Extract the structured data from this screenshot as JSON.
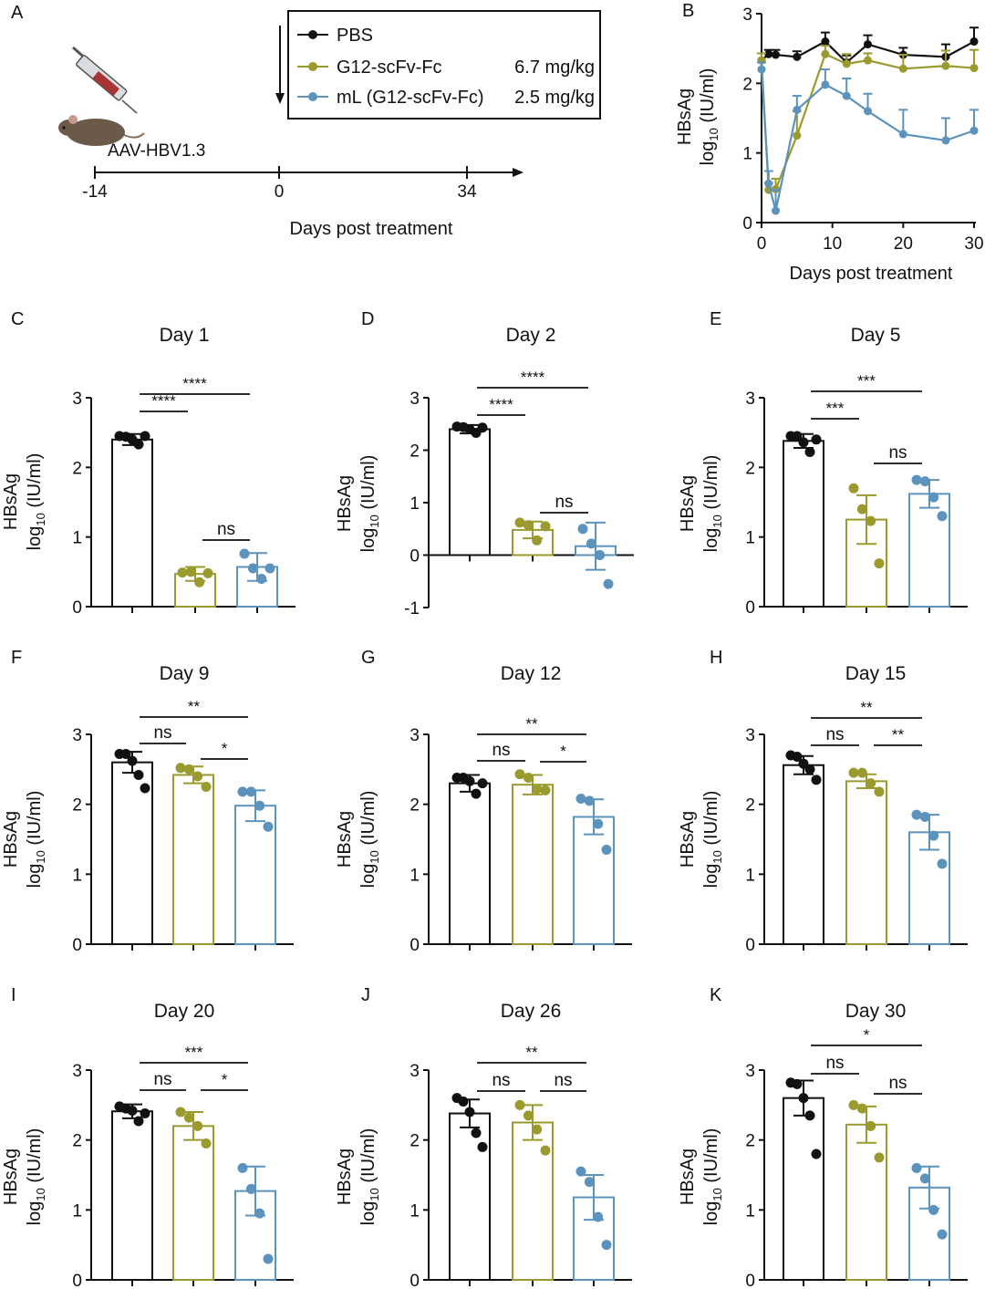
{
  "colors": {
    "pbs": "#111111",
    "g12": "#9a9a2e",
    "ml": "#5b93bd"
  },
  "panel_a": {
    "letter": "A",
    "mouse_label": "AAV-HBV1.3",
    "axis_label": "Days post treatment",
    "ticks": [
      "-14",
      "0",
      "34"
    ],
    "legend": [
      {
        "label": "PBS",
        "dose": ""
      },
      {
        "label": "G12-scFv-Fc",
        "dose": "6.7 mg/kg"
      },
      {
        "label": "mL (G12-scFv-Fc)",
        "dose": "2.5 mg/kg"
      }
    ]
  },
  "chart_data": [
    {
      "panel": "B",
      "type": "line",
      "xlabel": "Days post treatment",
      "ylabel_main": "HBsAg",
      "ylabel_log": "log",
      "ylabel_sub": "10",
      "ylabel_unit": " (IU/ml)",
      "xlim": [
        0,
        30
      ],
      "ylim": [
        0,
        3
      ],
      "xticks": [
        "0",
        "10",
        "20",
        "30"
      ],
      "yticks": [
        "0",
        "1",
        "2",
        "3"
      ],
      "x": [
        0,
        1,
        2,
        5,
        9,
        12,
        15,
        20,
        26,
        30
      ],
      "series": [
        {
          "name": "PBS",
          "values": [
            2.33,
            2.42,
            2.41,
            2.38,
            2.6,
            2.3,
            2.56,
            2.41,
            2.38,
            2.6
          ],
          "errors": [
            0.1,
            0.06,
            0.07,
            0.08,
            0.13,
            0.1,
            0.13,
            0.1,
            0.18,
            0.2
          ]
        },
        {
          "name": "G12-scFv-Fc",
          "values": [
            2.33,
            0.47,
            0.48,
            1.25,
            2.42,
            2.28,
            2.33,
            2.21,
            2.25,
            2.22
          ],
          "errors": [
            0.1,
            0.1,
            0.15,
            0.35,
            0.12,
            0.14,
            0.1,
            0.2,
            0.22,
            0.26
          ]
        },
        {
          "name": "mL (G12-scFv-Fc)",
          "values": [
            2.2,
            0.56,
            0.17,
            1.62,
            1.98,
            1.82,
            1.6,
            1.27,
            1.18,
            1.32
          ],
          "errors": [
            0.1,
            0.18,
            0.3,
            0.2,
            0.22,
            0.25,
            0.25,
            0.35,
            0.32,
            0.3
          ]
        }
      ]
    },
    {
      "panel": "C",
      "type": "bar",
      "title": "Day 1",
      "ylabel_main": "HBsAg",
      "ylabel_log": "log",
      "ylabel_sub": "10",
      "ylabel_unit": " (IU/ml)",
      "ylim": [
        0,
        3
      ],
      "yticks": [
        "0",
        "1",
        "2",
        "3"
      ],
      "series": [
        {
          "name": "PBS",
          "mean": 2.4,
          "sd": 0.08,
          "points": [
            2.45,
            2.44,
            2.4,
            2.33,
            2.45
          ]
        },
        {
          "name": "G12-scFv-Fc",
          "mean": 0.47,
          "sd": 0.1,
          "points": [
            0.49,
            0.5,
            0.35,
            0.48
          ]
        },
        {
          "name": "mL (G12-scFv-Fc)",
          "mean": 0.57,
          "sd": 0.2,
          "points": [
            0.76,
            0.55,
            0.4,
            0.55
          ]
        }
      ],
      "comparisons": [
        {
          "from": 0,
          "to": 1,
          "label": "****"
        },
        {
          "from": 0,
          "to": 2,
          "label": "****"
        },
        {
          "from": 1,
          "to": 2,
          "label": "ns"
        }
      ]
    },
    {
      "panel": "D",
      "type": "bar",
      "title": "Day 2",
      "ylabel_main": "HBsAg",
      "ylabel_log": "log",
      "ylabel_sub": "10",
      "ylabel_unit": " (IU/ml)",
      "ylim": [
        -1,
        3
      ],
      "yticks": [
        "-1",
        "0",
        "1",
        "2",
        "3"
      ],
      "series": [
        {
          "name": "PBS",
          "mean": 2.4,
          "sd": 0.08,
          "points": [
            2.45,
            2.44,
            2.4,
            2.33,
            2.43
          ]
        },
        {
          "name": "G12-scFv-Fc",
          "mean": 0.48,
          "sd": 0.16,
          "points": [
            0.62,
            0.57,
            0.28,
            0.55
          ]
        },
        {
          "name": "mL (G12-scFv-Fc)",
          "mean": 0.17,
          "sd": 0.45,
          "points": [
            0.5,
            0.22,
            0.0,
            -0.55
          ]
        }
      ],
      "comparisons": [
        {
          "from": 0,
          "to": 1,
          "label": "****"
        },
        {
          "from": 0,
          "to": 2,
          "label": "****"
        },
        {
          "from": 1,
          "to": 2,
          "label": "ns"
        }
      ]
    },
    {
      "panel": "E",
      "type": "bar",
      "title": "Day 5",
      "ylabel_main": "HBsAg",
      "ylabel_log": "log",
      "ylabel_sub": "10",
      "ylabel_unit": " (IU/ml)",
      "ylim": [
        0,
        3
      ],
      "yticks": [
        "0",
        "1",
        "2",
        "3"
      ],
      "series": [
        {
          "name": "PBS",
          "mean": 2.38,
          "sd": 0.1,
          "points": [
            2.45,
            2.45,
            2.36,
            2.22,
            2.4
          ]
        },
        {
          "name": "G12-scFv-Fc",
          "mean": 1.25,
          "sd": 0.35,
          "points": [
            1.7,
            1.4,
            1.23,
            0.62
          ]
        },
        {
          "name": "mL (G12-scFv-Fc)",
          "mean": 1.62,
          "sd": 0.2,
          "points": [
            1.82,
            1.8,
            1.57,
            1.3
          ]
        }
      ],
      "comparisons": [
        {
          "from": 0,
          "to": 1,
          "label": "***"
        },
        {
          "from": 0,
          "to": 2,
          "label": "***"
        },
        {
          "from": 1,
          "to": 2,
          "label": "ns"
        }
      ]
    },
    {
      "panel": "F",
      "type": "bar",
      "title": "Day 9",
      "ylabel_main": "HBsAg",
      "ylabel_log": "log",
      "ylabel_sub": "10",
      "ylabel_unit": " (IU/ml)",
      "ylim": [
        0,
        3
      ],
      "yticks": [
        "0",
        "1",
        "2",
        "3"
      ],
      "series": [
        {
          "name": "PBS",
          "mean": 2.6,
          "sd": 0.15,
          "points": [
            2.72,
            2.72,
            2.62,
            2.42,
            2.23
          ]
        },
        {
          "name": "G12-scFv-Fc",
          "mean": 2.42,
          "sd": 0.12,
          "points": [
            2.52,
            2.5,
            2.4,
            2.25
          ]
        },
        {
          "name": "mL (G12-scFv-Fc)",
          "mean": 1.98,
          "sd": 0.22,
          "points": [
            2.18,
            2.18,
            1.98,
            1.68
          ]
        }
      ],
      "comparisons": [
        {
          "from": 0,
          "to": 1,
          "label": "ns"
        },
        {
          "from": 0,
          "to": 2,
          "label": "**"
        },
        {
          "from": 1,
          "to": 2,
          "label": "*"
        }
      ]
    },
    {
      "panel": "G",
      "type": "bar",
      "title": "Day 12",
      "ylabel_main": "HBsAg",
      "ylabel_log": "log",
      "ylabel_sub": "10",
      "ylabel_unit": " (IU/ml)",
      "ylim": [
        0,
        3
      ],
      "yticks": [
        "0",
        "1",
        "2",
        "3"
      ],
      "series": [
        {
          "name": "PBS",
          "mean": 2.3,
          "sd": 0.12,
          "points": [
            2.38,
            2.38,
            2.33,
            2.15,
            2.3
          ]
        },
        {
          "name": "G12-scFv-Fc",
          "mean": 2.28,
          "sd": 0.14,
          "points": [
            2.43,
            2.38,
            2.22,
            2.2
          ]
        },
        {
          "name": "mL (G12-scFv-Fc)",
          "mean": 1.82,
          "sd": 0.25,
          "points": [
            2.08,
            2.05,
            1.72,
            1.35
          ]
        }
      ],
      "comparisons": [
        {
          "from": 0,
          "to": 1,
          "label": "ns"
        },
        {
          "from": 0,
          "to": 2,
          "label": "**"
        },
        {
          "from": 1,
          "to": 2,
          "label": "*"
        }
      ]
    },
    {
      "panel": "H",
      "type": "bar",
      "title": "Day 15",
      "ylabel_main": "HBsAg",
      "ylabel_log": "log",
      "ylabel_sub": "10",
      "ylabel_unit": " (IU/ml)",
      "ylim": [
        0,
        3
      ],
      "yticks": [
        "0",
        "1",
        "2",
        "3"
      ],
      "series": [
        {
          "name": "PBS",
          "mean": 2.56,
          "sd": 0.13,
          "points": [
            2.7,
            2.68,
            2.58,
            2.5,
            2.35
          ]
        },
        {
          "name": "G12-scFv-Fc",
          "mean": 2.33,
          "sd": 0.1,
          "points": [
            2.45,
            2.45,
            2.3,
            2.18
          ]
        },
        {
          "name": "mL (G12-scFv-Fc)",
          "mean": 1.6,
          "sd": 0.25,
          "points": [
            1.85,
            1.82,
            1.55,
            1.15
          ]
        }
      ],
      "comparisons": [
        {
          "from": 0,
          "to": 1,
          "label": "ns"
        },
        {
          "from": 0,
          "to": 2,
          "label": "**"
        },
        {
          "from": 1,
          "to": 2,
          "label": "**"
        }
      ]
    },
    {
      "panel": "I",
      "type": "bar",
      "title": "Day 20",
      "ylabel_main": "HBsAg",
      "ylabel_log": "log",
      "ylabel_sub": "10",
      "ylabel_unit": " (IU/ml)",
      "ylim": [
        0,
        3
      ],
      "yticks": [
        "0",
        "1",
        "2",
        "3"
      ],
      "series": [
        {
          "name": "PBS",
          "mean": 2.41,
          "sd": 0.1,
          "points": [
            2.48,
            2.45,
            2.42,
            2.27,
            2.38
          ]
        },
        {
          "name": "G12-scFv-Fc",
          "mean": 2.2,
          "sd": 0.2,
          "points": [
            2.4,
            2.32,
            2.2,
            1.95
          ]
        },
        {
          "name": "mL (G12-scFv-Fc)",
          "mean": 1.27,
          "sd": 0.35,
          "points": [
            1.6,
            1.3,
            0.95,
            0.3
          ]
        }
      ],
      "comparisons": [
        {
          "from": 0,
          "to": 1,
          "label": "ns"
        },
        {
          "from": 0,
          "to": 2,
          "label": "***"
        },
        {
          "from": 1,
          "to": 2,
          "label": "*"
        }
      ]
    },
    {
      "panel": "J",
      "type": "bar",
      "title": "Day 26",
      "ylabel_main": "HBsAg",
      "ylabel_log": "log",
      "ylabel_sub": "10",
      "ylabel_unit": " (IU/ml)",
      "ylim": [
        0,
        3
      ],
      "yticks": [
        "0",
        "1",
        "2",
        "3"
      ],
      "series": [
        {
          "name": "PBS",
          "mean": 2.38,
          "sd": 0.2,
          "points": [
            2.6,
            2.55,
            2.4,
            2.1,
            1.9
          ]
        },
        {
          "name": "G12-scFv-Fc",
          "mean": 2.25,
          "sd": 0.25,
          "points": [
            2.5,
            2.35,
            2.15,
            1.85
          ]
        },
        {
          "name": "mL (G12-scFv-Fc)",
          "mean": 1.18,
          "sd": 0.32,
          "points": [
            1.55,
            1.4,
            0.9,
            0.5
          ]
        }
      ],
      "comparisons": [
        {
          "from": 0,
          "to": 1,
          "label": "ns"
        },
        {
          "from": 0,
          "to": 2,
          "label": "**"
        },
        {
          "from": 1,
          "to": 2,
          "label": "ns"
        }
      ]
    },
    {
      "panel": "K",
      "type": "bar",
      "title": "Day 30",
      "ylabel_main": "HBsAg",
      "ylabel_log": "log",
      "ylabel_sub": "10",
      "ylabel_unit": " (IU/ml)",
      "ylim": [
        0,
        3
      ],
      "yticks": [
        "0",
        "1",
        "2",
        "3"
      ],
      "series": [
        {
          "name": "PBS",
          "mean": 2.6,
          "sd": 0.25,
          "points": [
            2.82,
            2.8,
            2.6,
            2.35,
            1.8
          ]
        },
        {
          "name": "G12-scFv-Fc",
          "mean": 2.22,
          "sd": 0.26,
          "points": [
            2.5,
            2.45,
            2.2,
            1.75
          ]
        },
        {
          "name": "mL (G12-scFv-Fc)",
          "mean": 1.32,
          "sd": 0.3,
          "points": [
            1.6,
            1.45,
            1.0,
            0.65
          ]
        }
      ],
      "comparisons": [
        {
          "from": 0,
          "to": 1,
          "label": "ns"
        },
        {
          "from": 0,
          "to": 2,
          "label": "*"
        },
        {
          "from": 1,
          "to": 2,
          "label": "ns"
        }
      ]
    }
  ]
}
